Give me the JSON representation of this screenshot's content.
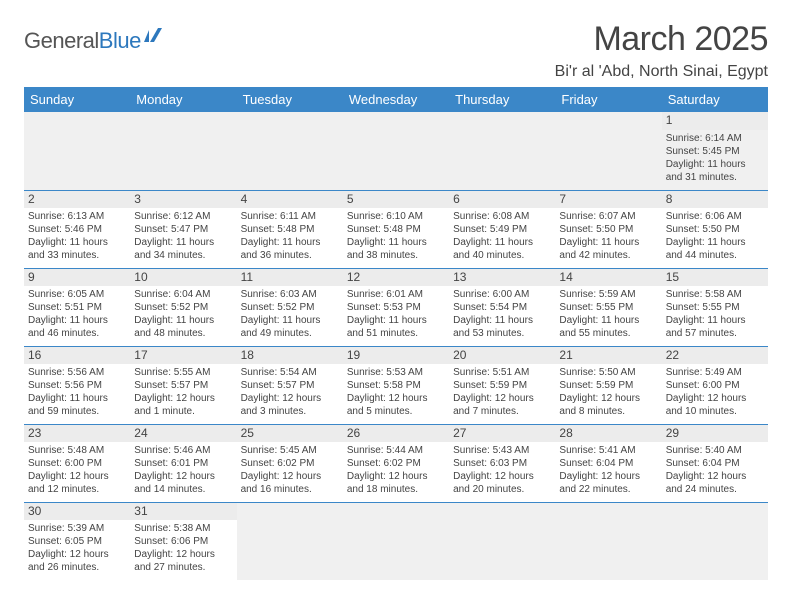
{
  "logo": {
    "text1": "General",
    "text2": "Blue"
  },
  "title": "March 2025",
  "location": "Bi'r al 'Abd, North Sinai, Egypt",
  "colors": {
    "header_bg": "#3b87c8",
    "header_text": "#ffffff",
    "border": "#3b87c8",
    "daynum_bg": "#ececec",
    "text": "#444444",
    "logo_gray": "#555555",
    "logo_blue": "#2d78bd"
  },
  "day_headers": [
    "Sunday",
    "Monday",
    "Tuesday",
    "Wednesday",
    "Thursday",
    "Friday",
    "Saturday"
  ],
  "weeks": [
    [
      null,
      null,
      null,
      null,
      null,
      null,
      {
        "n": "1",
        "sunrise": "6:14 AM",
        "sunset": "5:45 PM",
        "daylight": "11 hours and 31 minutes."
      }
    ],
    [
      {
        "n": "2",
        "sunrise": "6:13 AM",
        "sunset": "5:46 PM",
        "daylight": "11 hours and 33 minutes."
      },
      {
        "n": "3",
        "sunrise": "6:12 AM",
        "sunset": "5:47 PM",
        "daylight": "11 hours and 34 minutes."
      },
      {
        "n": "4",
        "sunrise": "6:11 AM",
        "sunset": "5:48 PM",
        "daylight": "11 hours and 36 minutes."
      },
      {
        "n": "5",
        "sunrise": "6:10 AM",
        "sunset": "5:48 PM",
        "daylight": "11 hours and 38 minutes."
      },
      {
        "n": "6",
        "sunrise": "6:08 AM",
        "sunset": "5:49 PM",
        "daylight": "11 hours and 40 minutes."
      },
      {
        "n": "7",
        "sunrise": "6:07 AM",
        "sunset": "5:50 PM",
        "daylight": "11 hours and 42 minutes."
      },
      {
        "n": "8",
        "sunrise": "6:06 AM",
        "sunset": "5:50 PM",
        "daylight": "11 hours and 44 minutes."
      }
    ],
    [
      {
        "n": "9",
        "sunrise": "6:05 AM",
        "sunset": "5:51 PM",
        "daylight": "11 hours and 46 minutes."
      },
      {
        "n": "10",
        "sunrise": "6:04 AM",
        "sunset": "5:52 PM",
        "daylight": "11 hours and 48 minutes."
      },
      {
        "n": "11",
        "sunrise": "6:03 AM",
        "sunset": "5:52 PM",
        "daylight": "11 hours and 49 minutes."
      },
      {
        "n": "12",
        "sunrise": "6:01 AM",
        "sunset": "5:53 PM",
        "daylight": "11 hours and 51 minutes."
      },
      {
        "n": "13",
        "sunrise": "6:00 AM",
        "sunset": "5:54 PM",
        "daylight": "11 hours and 53 minutes."
      },
      {
        "n": "14",
        "sunrise": "5:59 AM",
        "sunset": "5:55 PM",
        "daylight": "11 hours and 55 minutes."
      },
      {
        "n": "15",
        "sunrise": "5:58 AM",
        "sunset": "5:55 PM",
        "daylight": "11 hours and 57 minutes."
      }
    ],
    [
      {
        "n": "16",
        "sunrise": "5:56 AM",
        "sunset": "5:56 PM",
        "daylight": "11 hours and 59 minutes."
      },
      {
        "n": "17",
        "sunrise": "5:55 AM",
        "sunset": "5:57 PM",
        "daylight": "12 hours and 1 minute."
      },
      {
        "n": "18",
        "sunrise": "5:54 AM",
        "sunset": "5:57 PM",
        "daylight": "12 hours and 3 minutes."
      },
      {
        "n": "19",
        "sunrise": "5:53 AM",
        "sunset": "5:58 PM",
        "daylight": "12 hours and 5 minutes."
      },
      {
        "n": "20",
        "sunrise": "5:51 AM",
        "sunset": "5:59 PM",
        "daylight": "12 hours and 7 minutes."
      },
      {
        "n": "21",
        "sunrise": "5:50 AM",
        "sunset": "5:59 PM",
        "daylight": "12 hours and 8 minutes."
      },
      {
        "n": "22",
        "sunrise": "5:49 AM",
        "sunset": "6:00 PM",
        "daylight": "12 hours and 10 minutes."
      }
    ],
    [
      {
        "n": "23",
        "sunrise": "5:48 AM",
        "sunset": "6:00 PM",
        "daylight": "12 hours and 12 minutes."
      },
      {
        "n": "24",
        "sunrise": "5:46 AM",
        "sunset": "6:01 PM",
        "daylight": "12 hours and 14 minutes."
      },
      {
        "n": "25",
        "sunrise": "5:45 AM",
        "sunset": "6:02 PM",
        "daylight": "12 hours and 16 minutes."
      },
      {
        "n": "26",
        "sunrise": "5:44 AM",
        "sunset": "6:02 PM",
        "daylight": "12 hours and 18 minutes."
      },
      {
        "n": "27",
        "sunrise": "5:43 AM",
        "sunset": "6:03 PM",
        "daylight": "12 hours and 20 minutes."
      },
      {
        "n": "28",
        "sunrise": "5:41 AM",
        "sunset": "6:04 PM",
        "daylight": "12 hours and 22 minutes."
      },
      {
        "n": "29",
        "sunrise": "5:40 AM",
        "sunset": "6:04 PM",
        "daylight": "12 hours and 24 minutes."
      }
    ],
    [
      {
        "n": "30",
        "sunrise": "5:39 AM",
        "sunset": "6:05 PM",
        "daylight": "12 hours and 26 minutes."
      },
      {
        "n": "31",
        "sunrise": "5:38 AM",
        "sunset": "6:06 PM",
        "daylight": "12 hours and 27 minutes."
      },
      null,
      null,
      null,
      null,
      null
    ]
  ],
  "labels": {
    "sunrise": "Sunrise:",
    "sunset": "Sunset:",
    "daylight": "Daylight:"
  }
}
